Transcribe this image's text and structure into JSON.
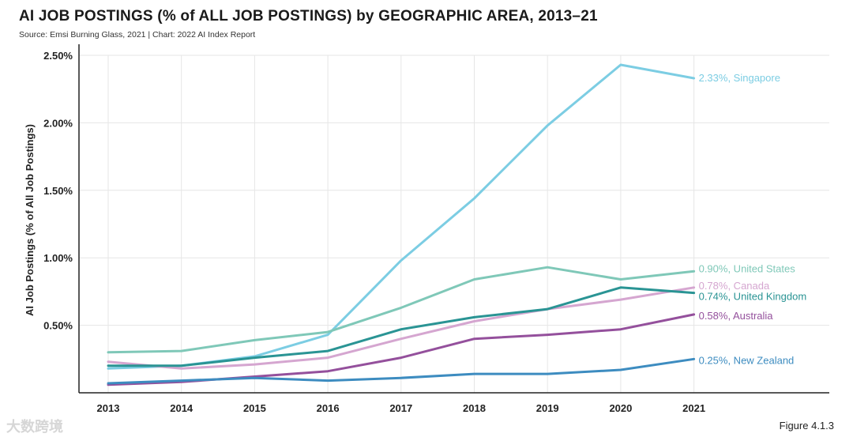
{
  "title": "AI JOB POSTINGS (% of ALL JOB POSTINGS) by GEOGRAPHIC AREA, 2013–21",
  "source": "Source: Emsi Burning Glass, 2021 | Chart: 2022 AI Index Report",
  "figure": "Figure 4.1.3",
  "watermark": "大数跨境",
  "chart_data": {
    "type": "line",
    "ylabel": "AI Job Postings (% of All Job Postings)",
    "x": [
      "2013",
      "2014",
      "2015",
      "2016",
      "2017",
      "2018",
      "2019",
      "2020",
      "2021"
    ],
    "ylim": [
      0,
      2.5
    ],
    "yticks": [
      0.5,
      1.0,
      1.5,
      2.0,
      2.5
    ],
    "ytick_labels": [
      "0.50%",
      "1.00%",
      "1.50%",
      "2.00%",
      "2.50%"
    ],
    "grid": true,
    "series": [
      {
        "key": "singapore",
        "label": "2.33%, Singapore",
        "color": "#7ccde3",
        "values": [
          0.18,
          0.2,
          0.27,
          0.43,
          0.98,
          1.44,
          1.98,
          2.43,
          2.33
        ]
      },
      {
        "key": "united_states",
        "label": "0.90%, United States",
        "color": "#7fc8b8",
        "values": [
          0.3,
          0.31,
          0.39,
          0.45,
          0.63,
          0.84,
          0.93,
          0.84,
          0.9
        ]
      },
      {
        "key": "canada",
        "label": "0.78%, Canada",
        "color": "#d5a6d0",
        "values": [
          0.23,
          0.18,
          0.21,
          0.26,
          0.4,
          0.53,
          0.62,
          0.69,
          0.78
        ]
      },
      {
        "key": "united_kingdom",
        "label": "0.74%, United Kingdom",
        "color": "#2a9494",
        "values": [
          0.2,
          0.2,
          0.26,
          0.31,
          0.47,
          0.56,
          0.62,
          0.78,
          0.74
        ]
      },
      {
        "key": "australia",
        "label": "0.58%, Australia",
        "color": "#94509c",
        "values": [
          0.06,
          0.08,
          0.12,
          0.16,
          0.26,
          0.4,
          0.43,
          0.47,
          0.58
        ]
      },
      {
        "key": "new_zealand",
        "label": "0.25%, New Zealand",
        "color": "#3d8cc0",
        "values": [
          0.07,
          0.09,
          0.11,
          0.09,
          0.11,
          0.14,
          0.14,
          0.17,
          0.25
        ]
      }
    ]
  }
}
